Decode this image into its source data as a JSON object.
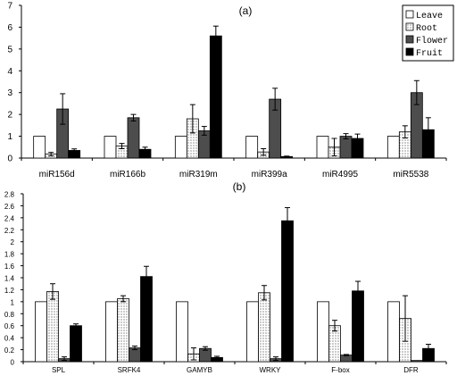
{
  "series_styles": [
    {
      "fill": "#ffffff",
      "pattern": false
    },
    {
      "fill": "#ffffff",
      "pattern": true
    },
    {
      "fill": "#4d4d4d",
      "pattern": false
    },
    {
      "fill": "#000000",
      "pattern": false
    }
  ],
  "chart_data": [
    {
      "type": "bar",
      "panel_label": "(a)",
      "categories": [
        "miR156d",
        "miR166b",
        "miR319m",
        "miR399a",
        "miR4995",
        "miR5538"
      ],
      "ylim": [
        0,
        7
      ],
      "yticks": [
        "0",
        "1",
        "2",
        "3",
        "4",
        "5",
        "6",
        "7"
      ],
      "legend": {
        "placement": "top-right",
        "entries": [
          "Leave",
          "Root",
          "Flower",
          "Fruit"
        ]
      },
      "series": [
        {
          "name": "Leave",
          "values": [
            1.0,
            1.0,
            1.0,
            1.0,
            1.0,
            1.0
          ],
          "errors": [
            0,
            0,
            0,
            0,
            0,
            0
          ]
        },
        {
          "name": "Root",
          "values": [
            0.18,
            0.55,
            1.8,
            0.28,
            0.5,
            1.2
          ],
          "errors": [
            0.08,
            0.12,
            0.65,
            0.15,
            0.4,
            0.28
          ]
        },
        {
          "name": "Flower",
          "values": [
            2.25,
            1.85,
            1.25,
            2.7,
            1.0,
            3.0
          ],
          "errors": [
            0.7,
            0.15,
            0.2,
            0.5,
            0.12,
            0.55
          ]
        },
        {
          "name": "Fruit",
          "values": [
            0.35,
            0.4,
            5.6,
            0.07,
            0.9,
            1.3
          ],
          "errors": [
            0.07,
            0.1,
            0.45,
            0.02,
            0.2,
            0.55
          ]
        }
      ]
    },
    {
      "type": "bar",
      "panel_label": "(b)",
      "categories": [
        "SPL",
        "SRFK4",
        "GAMYB",
        "WRKY",
        "F-box",
        "DFR"
      ],
      "ylim": [
        0,
        2.8
      ],
      "yticks": [
        "0",
        "0.2",
        "0.4",
        "0.6",
        "0.8",
        "1",
        "1.2",
        "1.4",
        "1.6",
        "1.8",
        "2",
        "2.2",
        "2.4",
        "2.6",
        "2.8"
      ],
      "series": [
        {
          "name": "Leave",
          "values": [
            1.0,
            1.0,
            1.0,
            1.0,
            1.0,
            1.0
          ],
          "errors": [
            0,
            0,
            0,
            0,
            0,
            0
          ]
        },
        {
          "name": "Root",
          "values": [
            1.17,
            1.05,
            0.13,
            1.15,
            0.6,
            0.72
          ],
          "errors": [
            0.13,
            0.05,
            0.1,
            0.12,
            0.09,
            0.38
          ]
        },
        {
          "name": "Flower",
          "values": [
            0.05,
            0.23,
            0.22,
            0.05,
            0.11,
            0.02
          ],
          "errors": [
            0.03,
            0.03,
            0.03,
            0.03,
            0.01,
            0.0
          ]
        },
        {
          "name": "Fruit",
          "values": [
            0.6,
            1.42,
            0.07,
            2.35,
            1.18,
            0.22
          ],
          "errors": [
            0.03,
            0.17,
            0.02,
            0.22,
            0.16,
            0.07
          ]
        }
      ]
    }
  ]
}
